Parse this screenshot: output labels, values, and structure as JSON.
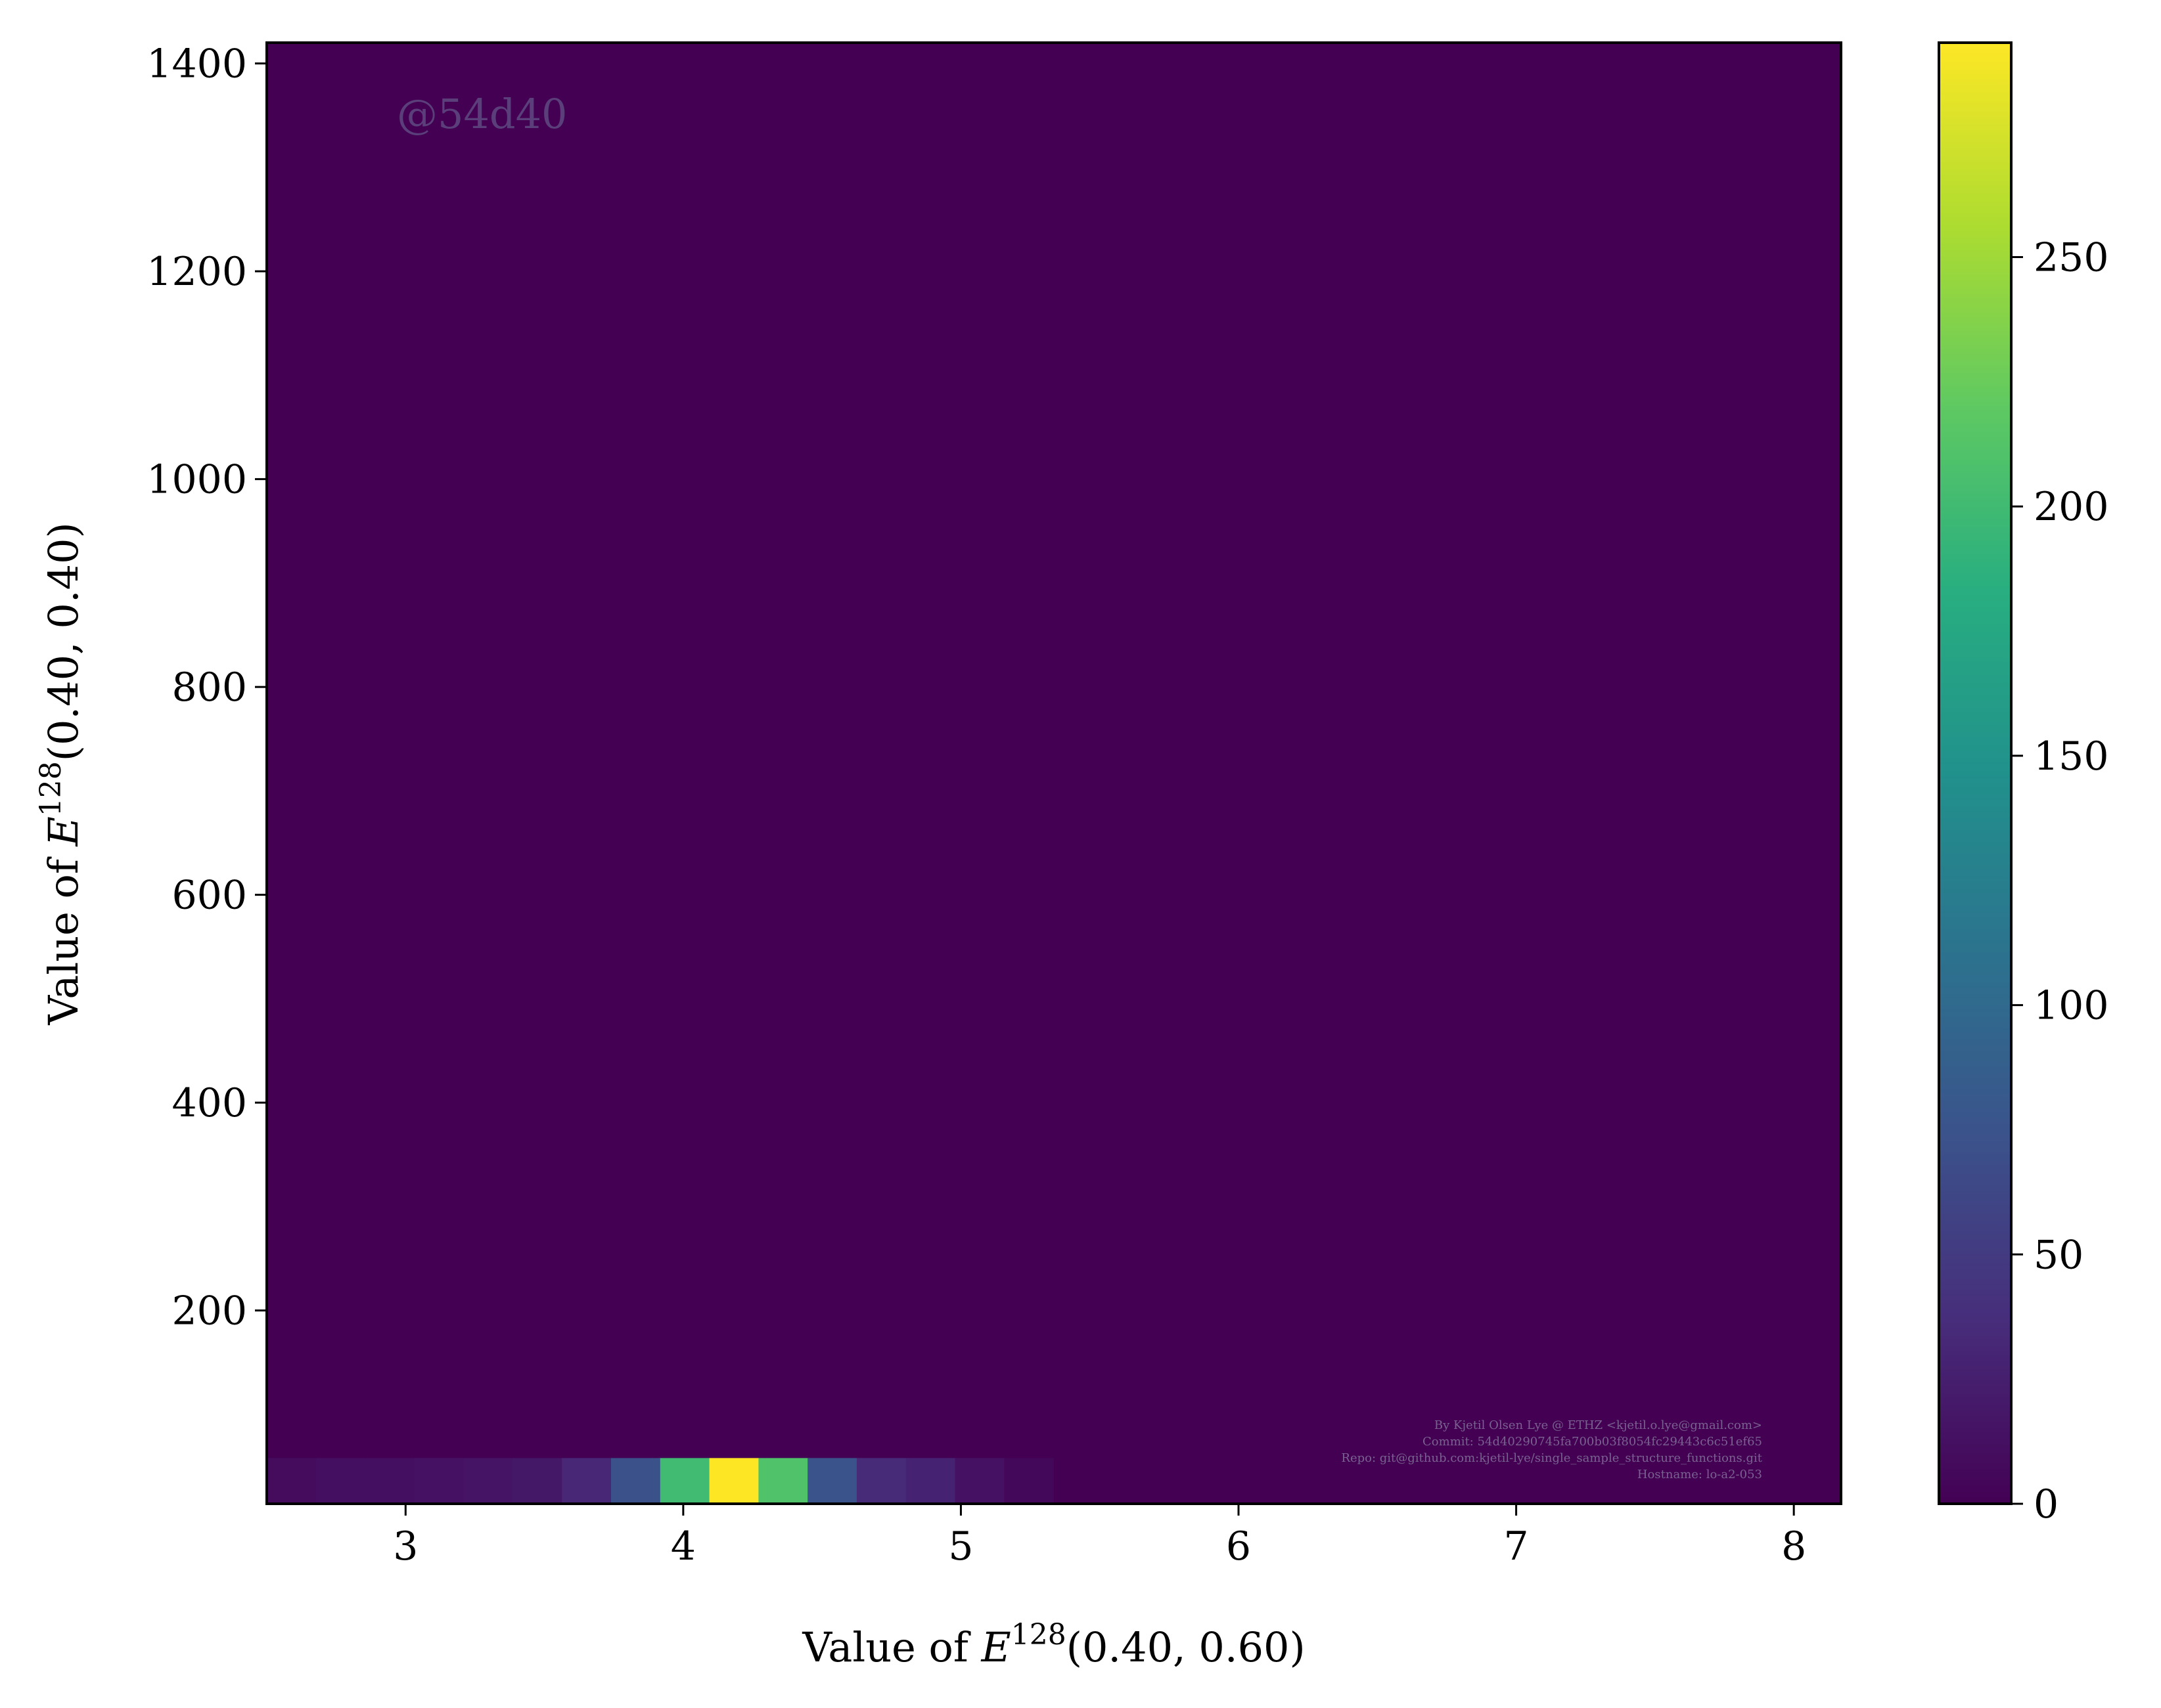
{
  "chart_data": {
    "type": "heatmap",
    "xlabel": {
      "prefix": "Value of ",
      "var": "E",
      "sup": "128",
      "args": "(0.40, 0.60)"
    },
    "ylabel": {
      "prefix": "Value of ",
      "var": "E",
      "sup": "128",
      "args": "(0.40, 0.40)"
    },
    "xlim": [
      2.5,
      8.17
    ],
    "ylim": [
      14,
      1420
    ],
    "x_ticks": [
      3,
      4,
      5,
      6,
      7,
      8
    ],
    "y_ticks": [
      200,
      400,
      600,
      800,
      1000,
      1200,
      1400
    ],
    "grid": false,
    "colormap": "viridis",
    "colorbar": {
      "min": 0,
      "max": 293,
      "ticks": [
        0,
        50,
        100,
        150,
        200,
        250
      ]
    },
    "x_bins": [
      2.5,
      2.677,
      2.854,
      3.031,
      3.208,
      3.385,
      3.563,
      3.74,
      3.917,
      4.094,
      4.271,
      4.448,
      4.625,
      4.802,
      4.979,
      5.156,
      5.333
    ],
    "y_bins": [
      14,
      58
    ],
    "background_value": 0,
    "cells": [
      {
        "x0": 2.5,
        "x1": 2.677,
        "y0": 14,
        "y1": 58,
        "count": 9
      },
      {
        "x0": 2.677,
        "x1": 2.854,
        "y0": 14,
        "y1": 58,
        "count": 12
      },
      {
        "x0": 2.854,
        "x1": 3.031,
        "y0": 14,
        "y1": 58,
        "count": 12
      },
      {
        "x0": 3.031,
        "x1": 3.208,
        "y0": 14,
        "y1": 58,
        "count": 14
      },
      {
        "x0": 3.208,
        "x1": 3.385,
        "y0": 14,
        "y1": 58,
        "count": 16
      },
      {
        "x0": 3.385,
        "x1": 3.563,
        "y0": 14,
        "y1": 58,
        "count": 18
      },
      {
        "x0": 3.563,
        "x1": 3.74,
        "y0": 14,
        "y1": 58,
        "count": 32
      },
      {
        "x0": 3.74,
        "x1": 3.917,
        "y0": 14,
        "y1": 58,
        "count": 72
      },
      {
        "x0": 3.917,
        "x1": 4.094,
        "y0": 14,
        "y1": 58,
        "count": 200
      },
      {
        "x0": 4.094,
        "x1": 4.271,
        "y0": 14,
        "y1": 58,
        "count": 293
      },
      {
        "x0": 4.271,
        "x1": 4.448,
        "y0": 14,
        "y1": 58,
        "count": 210
      },
      {
        "x0": 4.448,
        "x1": 4.625,
        "y0": 14,
        "y1": 58,
        "count": 75
      },
      {
        "x0": 4.625,
        "x1": 4.802,
        "y0": 14,
        "y1": 58,
        "count": 35
      },
      {
        "x0": 4.802,
        "x1": 4.979,
        "y0": 14,
        "y1": 58,
        "count": 28
      },
      {
        "x0": 4.979,
        "x1": 5.156,
        "y0": 14,
        "y1": 58,
        "count": 13
      },
      {
        "x0": 5.156,
        "x1": 5.333,
        "y0": 14,
        "y1": 58,
        "count": 6
      }
    ]
  },
  "watermark": "@54d40",
  "credit_lines": [
    "By Kjetil Olsen Lye @ ETHZ <kjetil.o.lye@gmail.com>",
    "Commit: 54d40290745fa700b03f8054fc29443c6c51ef65",
    "Repo: git@github.com:kjetil-lye/single_sample_structure_functions.git",
    "Hostname: lo-a2-053"
  ]
}
